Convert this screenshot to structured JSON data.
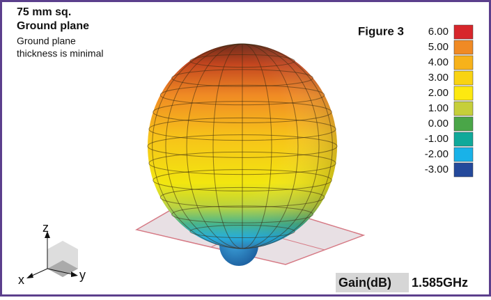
{
  "header": {
    "title": [
      "75 mm sq.",
      "Ground plane"
    ],
    "note": [
      "Ground plane",
      "thickness is minimal"
    ]
  },
  "figure_label": "Figure 3",
  "legend": [
    {
      "label": "6.00",
      "color": "#d7262b"
    },
    {
      "label": "5.00",
      "color": "#f08a24"
    },
    {
      "label": "4.00",
      "color": "#f7b21a"
    },
    {
      "label": "3.00",
      "color": "#f9d312"
    },
    {
      "label": "2.00",
      "color": "#fde910"
    },
    {
      "label": "1.00",
      "color": "#c6cf3a"
    },
    {
      "label": "0.00",
      "color": "#4aa648"
    },
    {
      "label": "-1.00",
      "color": "#10a99a"
    },
    {
      "label": "-2.00",
      "color": "#19b2e8"
    },
    {
      "label": "-3.00",
      "color": "#24499b"
    }
  ],
  "footer": {
    "gain_label": "Gain(dB)",
    "frequency": "1.585GHz"
  },
  "axes": {
    "z": "z",
    "x": "x",
    "y": "y"
  }
}
